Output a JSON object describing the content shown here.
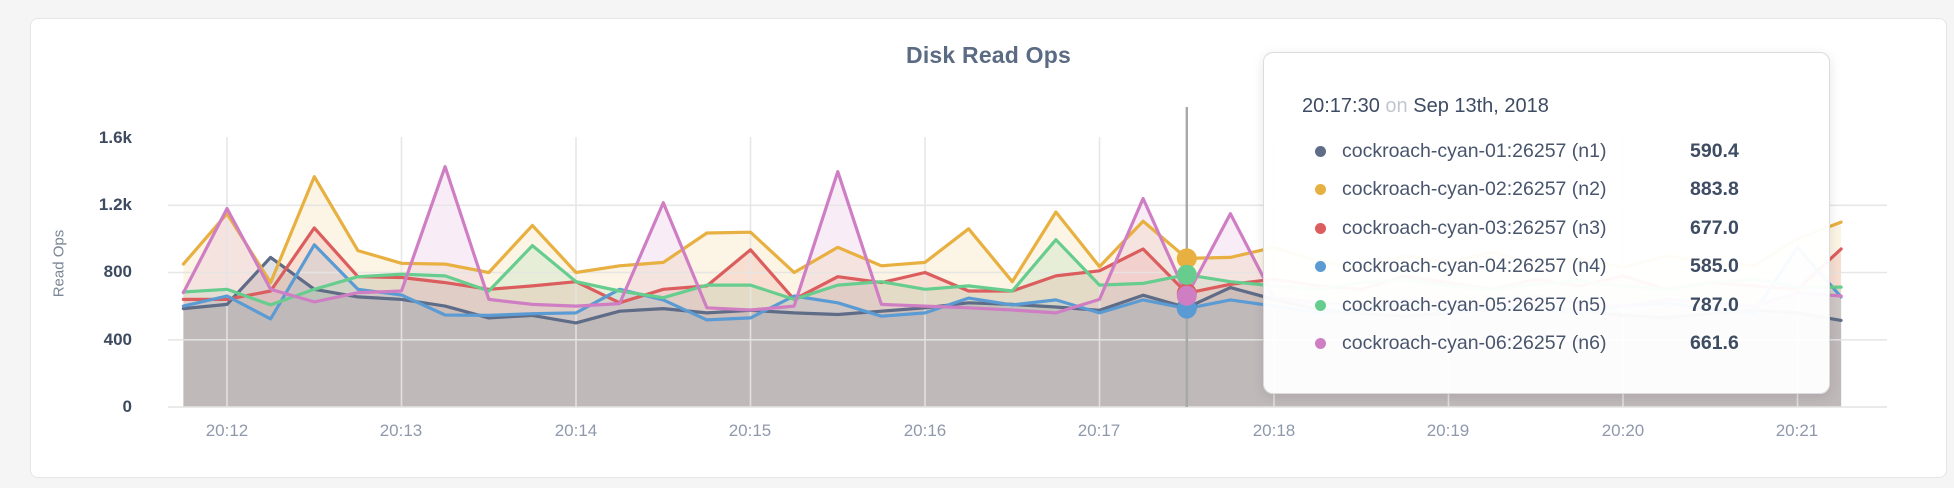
{
  "chart": {
    "title": "Disk Read Ops",
    "y_axis_title": "Read Ops"
  },
  "tooltip": {
    "time": "20:17:30",
    "on_word": "on",
    "date": "Sep 13th, 2018",
    "rows": [
      {
        "label": "cockroach-cyan-01:26257 (n1)",
        "value": "590.4",
        "color": "#5F6C87"
      },
      {
        "label": "cockroach-cyan-02:26257 (n2)",
        "value": "883.8",
        "color": "#E7B041"
      },
      {
        "label": "cockroach-cyan-03:26257 (n3)",
        "value": "677.0",
        "color": "#DB5D5E"
      },
      {
        "label": "cockroach-cyan-04:26257 (n4)",
        "value": "585.0",
        "color": "#5B9BD3"
      },
      {
        "label": "cockroach-cyan-05:26257 (n5)",
        "value": "787.0",
        "color": "#67CD8F"
      },
      {
        "label": "cockroach-cyan-06:26257 (n6)",
        "value": "661.6",
        "color": "#CF7EC4"
      }
    ]
  },
  "chart_data": {
    "type": "line",
    "title": "Disk Read Ops",
    "xlabel": "",
    "ylabel": "Read Ops",
    "ylim": [
      0,
      1600
    ],
    "grid": true,
    "legend_position": "tooltip",
    "y_ticklabels": [
      "0",
      "400",
      "800",
      "1.2k",
      "1.6k"
    ],
    "y_tickvalues": [
      0,
      400,
      800,
      1200,
      1600
    ],
    "x_ticklabels": [
      "20:12",
      "20:13",
      "20:14",
      "20:15",
      "20:16",
      "20:17",
      "20:18",
      "20:19",
      "20:20",
      "20:21"
    ],
    "start_time": "20:11:45",
    "interval_seconds": 15,
    "hover_time": "20:17:30",
    "hover_index": 23,
    "series": [
      {
        "name": "cockroach-cyan-01:26257 (n1)",
        "color": "#5F6C87",
        "values": [
          585,
          610,
          890,
          700,
          655,
          640,
          600,
          530,
          545,
          500,
          570,
          585,
          560,
          575,
          560,
          550,
          570,
          590,
          620,
          610,
          595,
          575,
          665,
          590.4,
          710,
          640,
          580,
          555,
          540,
          560,
          580,
          600,
          570,
          545,
          530,
          555,
          575,
          560,
          515
        ]
      },
      {
        "name": "cockroach-cyan-02:26257 (n2)",
        "color": "#E7B041",
        "values": [
          850,
          1150,
          740,
          1370,
          930,
          855,
          850,
          800,
          1080,
          800,
          840,
          860,
          1035,
          1040,
          800,
          950,
          840,
          860,
          1060,
          745,
          1160,
          835,
          1105,
          883.8,
          890,
          950,
          870,
          820,
          900,
          860,
          920,
          850,
          880,
          830,
          900,
          860,
          840,
          1000,
          1100
        ]
      },
      {
        "name": "cockroach-cyan-03:26257 (n3)",
        "color": "#DB5D5E",
        "values": [
          640,
          640,
          690,
          1065,
          775,
          770,
          740,
          700,
          720,
          745,
          620,
          700,
          720,
          935,
          640,
          775,
          740,
          800,
          690,
          690,
          780,
          810,
          940,
          677,
          730,
          760,
          720,
          700,
          780,
          740,
          700,
          760,
          720,
          780,
          700,
          740,
          720,
          700,
          940
        ]
      },
      {
        "name": "cockroach-cyan-04:26257 (n4)",
        "color": "#5B9BD3",
        "values": [
          600,
          660,
          524,
          965,
          700,
          666,
          547,
          545,
          555,
          560,
          700,
          637,
          518,
          530,
          660,
          620,
          540,
          560,
          648,
          607,
          637,
          560,
          637,
          585,
          637,
          600,
          560,
          580,
          620,
          560,
          600,
          580,
          560,
          600,
          620,
          580,
          560,
          950,
          655
        ]
      },
      {
        "name": "cockroach-cyan-05:26257 (n5)",
        "color": "#67CD8F",
        "values": [
          684,
          700,
          607,
          700,
          775,
          790,
          780,
          690,
          960,
          745,
          690,
          650,
          725,
          725,
          640,
          725,
          745,
          700,
          720,
          690,
          995,
          725,
          735,
          787,
          745,
          720,
          700,
          740,
          760,
          720,
          700,
          730,
          750,
          720,
          700,
          740,
          760,
          714,
          713
        ]
      },
      {
        "name": "cockroach-cyan-06:26257 (n6)",
        "color": "#CF7EC4",
        "values": [
          680,
          1180,
          700,
          625,
          680,
          690,
          1430,
          640,
          610,
          600,
          615,
          1215,
          590,
          577,
          600,
          1400,
          610,
          600,
          590,
          577,
          560,
          640,
          1240,
          661.6,
          1150,
          650,
          620,
          600,
          640,
          620,
          600,
          660,
          620,
          600,
          640,
          620,
          600,
          680,
          660
        ]
      }
    ]
  },
  "layout_colors": {
    "grid": "#e4e4e4",
    "hover_line": "#a8a8a8",
    "fill_opacity": 0.14
  }
}
